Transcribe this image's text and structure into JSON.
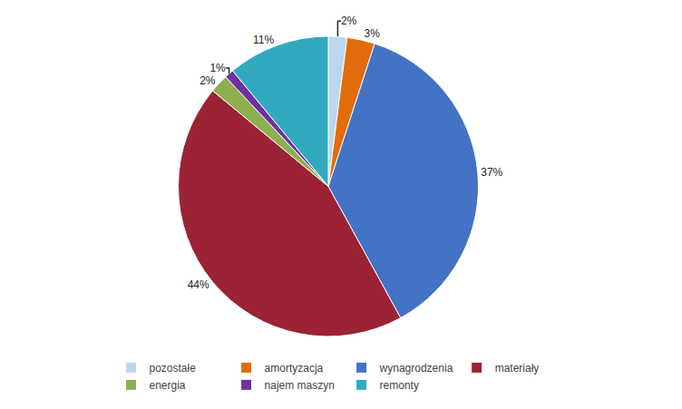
{
  "chart_data": {
    "type": "pie",
    "categories": [
      "pozostałe",
      "amortyzacja",
      "wynagrodzenia",
      "materiały",
      "energia",
      "najem maszyn",
      "remonty"
    ],
    "values": [
      2,
      3,
      37,
      44,
      2,
      1,
      11
    ],
    "value_labels": [
      "2%",
      "3%",
      "37%",
      "44%",
      "2%",
      "1%",
      "11%"
    ],
    "colors": [
      "#BDD7EE",
      "#E26B0A",
      "#4472C4",
      "#9B2335",
      "#8CB050",
      "#7030A0",
      "#31AAC0"
    ],
    "data_labels": true,
    "legend": "bottom"
  }
}
